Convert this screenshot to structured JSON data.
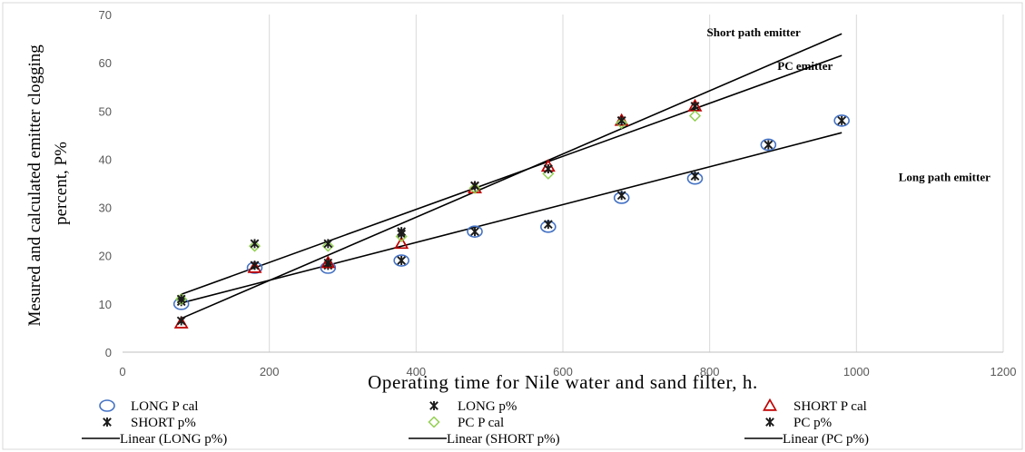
{
  "chart_data": {
    "type": "scatter",
    "title": "",
    "xlabel": "Operating time for Nile water and sand filter, h.",
    "ylabel_lines": [
      "Mesured and calculated emitter clogging",
      "percent, P%"
    ],
    "xlim": [
      0,
      1200
    ],
    "ylim": [
      0,
      70
    ],
    "x_ticks": [
      "0",
      "200",
      "400",
      "600",
      "800",
      "1000",
      "1200"
    ],
    "y_ticks": [
      "0",
      "10",
      "20",
      "30",
      "40",
      "50",
      "60",
      "70"
    ],
    "grid": "vertical",
    "legend_position": "bottom",
    "series": [
      {
        "name": "LONG P cal",
        "marker": "circle",
        "color": "#4472C4",
        "x": [
          80,
          180,
          280,
          380,
          480,
          580,
          680,
          780,
          880,
          980
        ],
        "y": [
          10,
          17.5,
          17.5,
          19,
          25,
          26,
          32,
          36,
          43,
          48
        ]
      },
      {
        "name": "LONG p%",
        "marker": "star",
        "color": "#1a1a1a",
        "x": [
          80,
          180,
          280,
          380,
          480,
          580,
          680,
          780,
          880,
          980
        ],
        "y": [
          10.5,
          18,
          18,
          19,
          25,
          26.5,
          32.5,
          36.5,
          43,
          48
        ]
      },
      {
        "name": "SHORT P cal",
        "marker": "triangle",
        "color": "#C00000",
        "x": [
          80,
          180,
          280,
          380,
          480,
          580,
          680,
          780
        ],
        "y": [
          6,
          17.5,
          18.5,
          22.5,
          34,
          38.5,
          48,
          51
        ]
      },
      {
        "name": "SHORT p%",
        "marker": "star",
        "color": "#1a1a1a",
        "x": [
          80,
          180,
          280,
          380,
          480,
          580,
          680,
          780
        ],
        "y": [
          6.5,
          18,
          18.5,
          24.5,
          34.5,
          38,
          48,
          51
        ]
      },
      {
        "name": "PC P cal",
        "marker": "diamond",
        "color": "#92D050",
        "x": [
          80,
          180,
          280,
          380,
          480,
          580,
          680,
          780
        ],
        "y": [
          11,
          22,
          22,
          24,
          34,
          37,
          47.5,
          49
        ]
      },
      {
        "name": "PC p%",
        "marker": "star",
        "color": "#1a1a1a",
        "x": [
          80,
          180,
          280,
          380,
          480,
          580,
          680,
          780
        ],
        "y": [
          11,
          22.5,
          22.5,
          25,
          34.5,
          38,
          48,
          51
        ]
      }
    ],
    "trendlines": [
      {
        "name": "Linear (LONG p%)",
        "x": [
          80,
          980
        ],
        "y": [
          10.2,
          45.5
        ]
      },
      {
        "name": "Linear (SHORT p%)",
        "x": [
          80,
          980
        ],
        "y": [
          7,
          66
        ]
      },
      {
        "name": "Linear (PC p%)",
        "x": [
          80,
          980
        ],
        "y": [
          12,
          61.5
        ]
      }
    ],
    "annotations": [
      {
        "text": "Short path emitter",
        "x": 860,
        "y": 65.5
      },
      {
        "text": "PC emitter",
        "x": 930,
        "y": 58.5
      },
      {
        "text": "Long path emitter",
        "x": 1120,
        "y": 35.5
      }
    ]
  }
}
